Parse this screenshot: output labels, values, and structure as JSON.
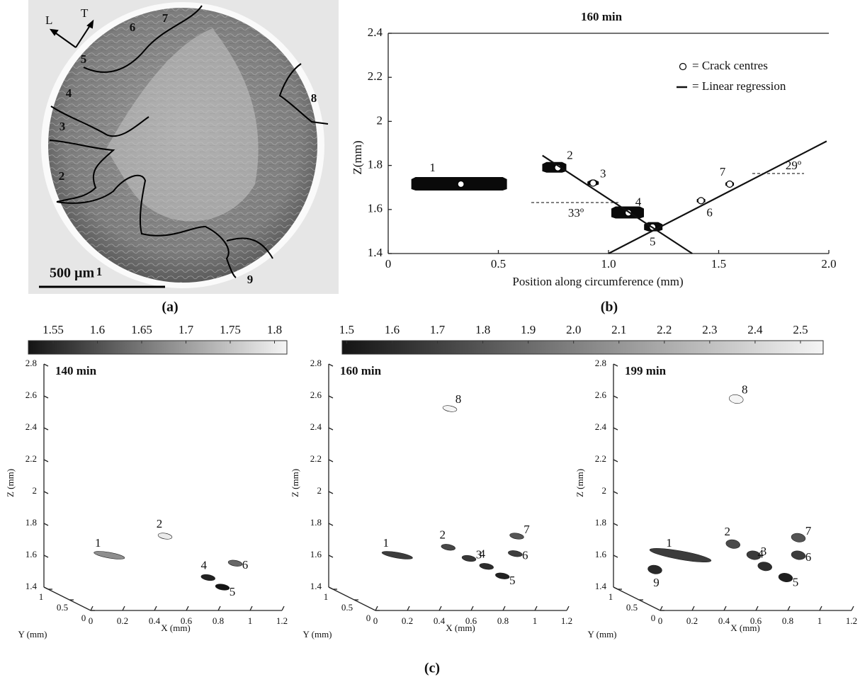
{
  "panel_a": {
    "label": "(a)",
    "direction_labels": [
      "L",
      "T"
    ],
    "region_labels": [
      "1",
      "2",
      "3",
      "4",
      "5",
      "6",
      "7",
      "8",
      "9"
    ],
    "scale_bar": "500 µm"
  },
  "panel_b_label": "(b)",
  "panel_c_label": "(c)",
  "chart_data": [
    {
      "type": "scatter",
      "title": "160 min",
      "x_label": "Position along circumference (mm)",
      "y_label": "Z(mm)",
      "xlim": [
        0,
        2
      ],
      "ylim": [
        1.4,
        2.4
      ],
      "xticks": [
        0,
        0.5,
        {
          "value": 1,
          "label": "1.0"
        },
        1.5,
        {
          "value": 2,
          "label": "2.0"
        }
      ],
      "yticks": [
        1.4,
        1.6,
        1.8,
        2,
        2.2,
        2.4
      ],
      "legend": "upper right",
      "series": [
        {
          "name": "= Crack centres",
          "type": "scatter",
          "color": "#ffffff",
          "x": [
            0.33,
            0.77,
            0.93,
            1.09,
            1.2,
            1.42,
            1.55
          ],
          "values": [
            1.715,
            1.79,
            1.72,
            1.585,
            1.52,
            1.64,
            1.715
          ],
          "point_labels": [
            "1",
            "2",
            "3",
            "4",
            "5",
            "6",
            "7"
          ]
        },
        {
          "name": "= Linear regression",
          "type": "line",
          "color": "#111111",
          "x": [
            0.7,
            1.38,
            null,
            1.0,
            1.99
          ],
          "values": [
            1.845,
            1.4,
            null,
            1.4,
            1.91
          ]
        }
      ],
      "annotations": [
        "33º",
        "29º"
      ]
    },
    {
      "type": "scatter3d",
      "title": "140 min",
      "x_label": "X (mm)",
      "y_label": "Y (mm)",
      "z_label": "Z (mm)",
      "xlim": [
        0,
        1.2
      ],
      "ylim": [
        0,
        1.1
      ],
      "zlim": [
        1.4,
        2.8
      ],
      "xticks": [
        0,
        0.2,
        0.4,
        0.6,
        0.8,
        1,
        1.2
      ],
      "yticks": [
        0,
        0.5,
        1
      ],
      "zticks": [
        1.4,
        1.6,
        1.8,
        2,
        2.2,
        2.4,
        2.6,
        2.8
      ],
      "clim": [
        1.522,
        1.814
      ],
      "cticks": [
        1.55,
        1.6,
        1.65,
        1.7,
        1.75,
        1.8
      ],
      "crack_labels": [
        "1",
        "2",
        "4",
        "5",
        "6"
      ],
      "x": [
        0.25,
        0.6,
        0.87,
        0.96,
        1.04
      ],
      "z": [
        1.68,
        1.8,
        1.54,
        1.48,
        1.63
      ]
    },
    {
      "type": "scatter3d",
      "title": "160 min",
      "x_label": "X (mm)",
      "y_label": "Y (mm)",
      "z_label": "Z (mm)",
      "xlim": [
        0,
        1.2
      ],
      "ylim": [
        0,
        1.1
      ],
      "zlim": [
        1.4,
        2.8
      ],
      "xticks": [
        0,
        0.2,
        0.4,
        0.6,
        0.8,
        1,
        1.2
      ],
      "yticks": [
        0,
        0.5,
        1
      ],
      "zticks": [
        1.4,
        1.6,
        1.8,
        2,
        2.2,
        2.4,
        2.6,
        2.8
      ],
      "clim": [
        1.49,
        2.55
      ],
      "cticks": [
        1.5,
        1.6,
        1.7,
        1.8,
        1.9,
        {
          "value": 2,
          "label": "2.0"
        },
        2.1,
        2.2,
        2.3,
        2.4,
        2.5
      ],
      "crack_labels": [
        "1",
        "2",
        "3",
        "4",
        "5",
        "6",
        "7",
        "8"
      ],
      "x": [
        0.27,
        0.59,
        0.72,
        0.83,
        0.93,
        1.01,
        1.02,
        0.6
      ],
      "z": [
        1.68,
        1.73,
        1.66,
        1.61,
        1.55,
        1.69,
        1.8,
        2.6
      ]
    },
    {
      "type": "scatter3d",
      "title": "199 min",
      "x_label": "X (mm)",
      "y_label": "Y (mm)",
      "z_label": "Z (mm)",
      "xlim": [
        0,
        1.2
      ],
      "ylim": [
        0,
        1.1
      ],
      "zlim": [
        1.4,
        2.8
      ],
      "xticks": [
        0,
        0.2,
        0.4,
        0.6,
        0.8,
        1,
        1.2
      ],
      "yticks": [
        0,
        0.5,
        1
      ],
      "zticks": [
        1.4,
        1.6,
        1.8,
        2,
        2.2,
        2.4,
        2.6,
        2.8
      ],
      "clim": [
        1.49,
        2.55
      ],
      "crack_labels": [
        "1",
        "2",
        "3",
        "4",
        "5",
        "6",
        "7",
        "8",
        "9"
      ],
      "x": [
        0.26,
        0.59,
        0.72,
        0.79,
        0.92,
        1.0,
        1.0,
        0.61,
        0.1
      ],
      "z": [
        1.68,
        1.75,
        1.68,
        1.61,
        1.54,
        1.68,
        1.79,
        2.66,
        1.59
      ]
    }
  ]
}
